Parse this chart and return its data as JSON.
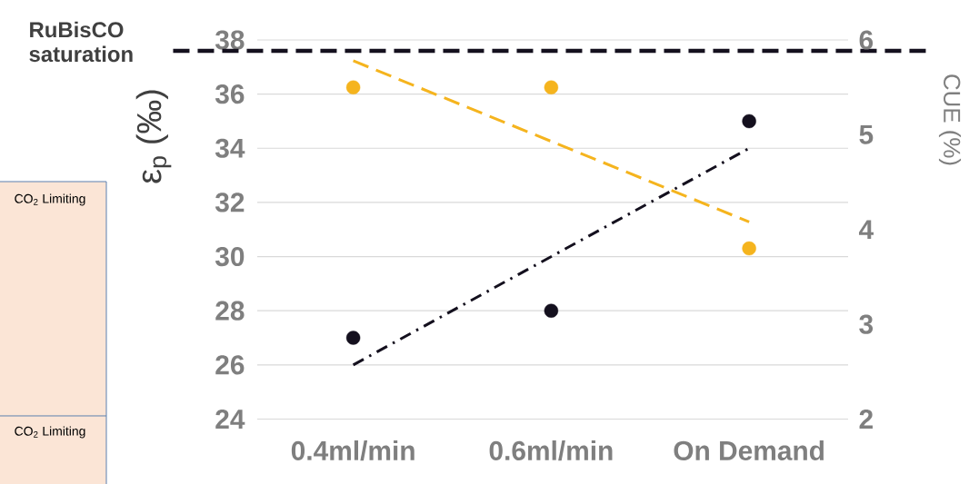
{
  "chart_data": [
    {
      "type": "other",
      "annotations": [
        "CO$_{2}$ Limiting",
        "CO$_{2}$ Limiting"
      ]
    },
    {
      "type": "scatter",
      "categories": [
        "0.4ml/min",
        "0.6ml/min",
        "On Demand"
      ],
      "ylabel": "ε$_{p}$ (‰)",
      "y2label": "CUE (%)",
      "ylim": [
        24,
        38
      ],
      "yticks": [
        24,
        26,
        28,
        30,
        32,
        34,
        36,
        38
      ],
      "y2lim": [
        2,
        6
      ],
      "y2ticks": [
        2,
        3,
        4,
        5,
        6
      ],
      "grid": "y",
      "series": [
        {
          "type": "scatter",
          "color": "#14101e",
          "marker": "circle",
          "values": [
            27,
            28,
            35
          ]
        },
        {
          "type": "scatter",
          "color": "#f5b41e",
          "marker": "circle",
          "axis": "y2",
          "values": [
            5.5,
            5.5,
            3.8
          ]
        },
        {
          "type": "line",
          "color": "#14101e",
          "marker": "none",
          "line_style": "dashdot",
          "x": [
            "0.4ml/min",
            "On Demand"
          ],
          "values": [
            26,
            34
          ]
        },
        {
          "type": "line",
          "color": "#f5b41e",
          "marker": "none",
          "line_style": "dashed",
          "axis": "y2",
          "x": [
            "0.4ml/min",
            "On Demand"
          ],
          "values": [
            5.78,
            4.08
          ]
        }
      ],
      "ref_lines": [
        {
          "axis": "y",
          "value": 37.6,
          "label": "RuBisCO saturation",
          "color": "#14101e",
          "line_style": "dashed"
        }
      ]
    }
  ]
}
